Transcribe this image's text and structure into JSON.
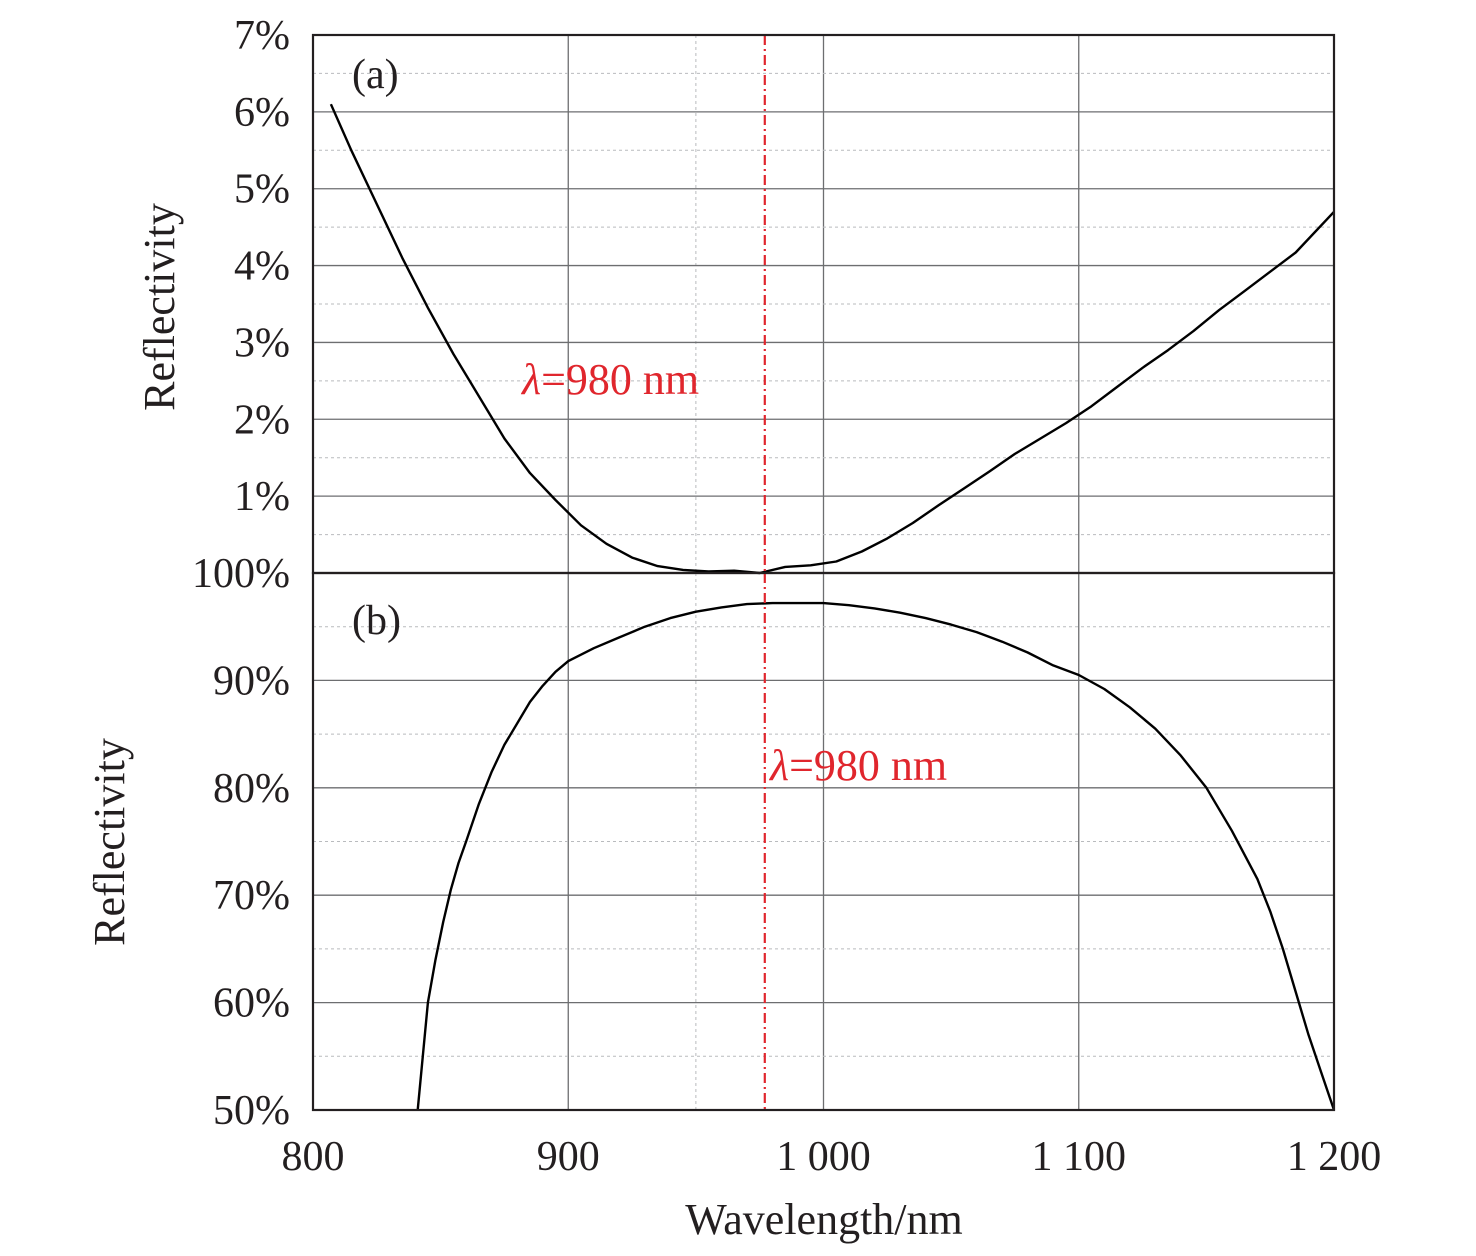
{
  "chart_data": [
    {
      "panel": "(a)",
      "type": "line",
      "ylabel": "Reflectivity",
      "xlim": [
        800,
        1200
      ],
      "ylim": [
        0,
        7
      ],
      "y_tick_labels": [
        "7%",
        "6%",
        "5%",
        "4%",
        "3%",
        "2%",
        "1%"
      ],
      "y_tick_values": [
        7,
        6,
        5,
        4,
        3,
        2,
        1
      ],
      "grid": true,
      "annotation": {
        "text": "=980 nm",
        "symbol": "λ",
        "x": 977
      },
      "series": [
        {
          "x": [
            807,
            815,
            825,
            835,
            845,
            855,
            865,
            875,
            885,
            895,
            905,
            915,
            925,
            935,
            945,
            955,
            965,
            975,
            985,
            995,
            1005,
            1015,
            1025,
            1035,
            1045,
            1055,
            1065,
            1075,
            1085,
            1095,
            1105,
            1115,
            1125,
            1135,
            1145,
            1155,
            1165,
            1175,
            1185,
            1200
          ],
          "y": [
            6.1,
            5.5,
            4.8,
            4.1,
            3.45,
            2.85,
            2.3,
            1.75,
            1.3,
            0.95,
            0.62,
            0.38,
            0.2,
            0.09,
            0.04,
            0.02,
            0.03,
            0.0,
            0.08,
            0.1,
            0.15,
            0.28,
            0.45,
            0.65,
            0.88,
            1.1,
            1.32,
            1.55,
            1.75,
            1.95,
            2.17,
            2.42,
            2.67,
            2.9,
            3.15,
            3.42,
            3.67,
            3.92,
            4.17,
            4.7
          ]
        }
      ]
    },
    {
      "panel": "(b)",
      "type": "line",
      "ylabel": "Reflectivity",
      "xlabel": "Wavelength/nm",
      "xlim": [
        800,
        1200
      ],
      "ylim": [
        50,
        100
      ],
      "x_tick_labels": [
        "800",
        "900",
        "1 000",
        "1 100",
        "1 200"
      ],
      "x_tick_values": [
        800,
        900,
        1000,
        1100,
        1200
      ],
      "y_tick_labels": [
        "100%",
        "90%",
        "80%",
        "70%",
        "60%",
        "50%"
      ],
      "y_tick_values": [
        100,
        90,
        80,
        70,
        60,
        50
      ],
      "grid": true,
      "annotation": {
        "text": "=980 nm",
        "symbol": "λ",
        "x": 977
      },
      "series": [
        {
          "x": [
            841,
            843,
            845,
            848,
            851,
            854,
            857,
            860,
            865,
            870,
            875,
            880,
            885,
            890,
            895,
            900,
            910,
            920,
            930,
            940,
            950,
            960,
            970,
            980,
            990,
            1000,
            1010,
            1020,
            1030,
            1040,
            1050,
            1060,
            1070,
            1080,
            1090,
            1100,
            1110,
            1120,
            1130,
            1140,
            1150,
            1160,
            1170,
            1175,
            1180,
            1185,
            1190,
            1195,
            1200
          ],
          "y": [
            50,
            55,
            60,
            64,
            67.5,
            70.5,
            73,
            75,
            78.5,
            81.5,
            84,
            86,
            88,
            89.5,
            90.8,
            91.8,
            93,
            94,
            95,
            95.8,
            96.4,
            96.8,
            97.1,
            97.2,
            97.2,
            97.2,
            97.0,
            96.7,
            96.3,
            95.8,
            95.2,
            94.5,
            93.6,
            92.6,
            91.4,
            90.5,
            89.2,
            87.5,
            85.5,
            83,
            80,
            76,
            71.5,
            68.5,
            65,
            61,
            57,
            53.5,
            50
          ]
        }
      ]
    }
  ]
}
